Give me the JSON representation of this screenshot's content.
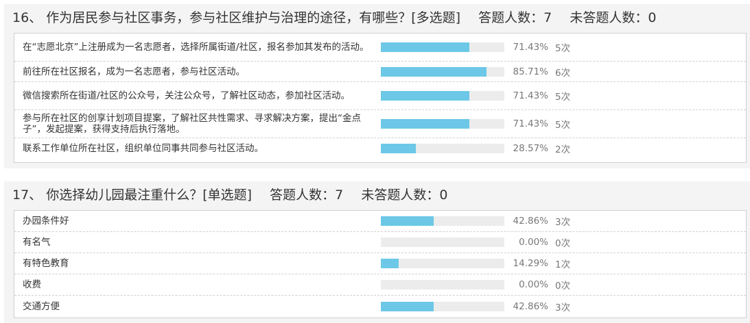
{
  "questions": [
    {
      "number": "16、",
      "text": "作为居民参与社区事务，参与社区维护与治理的途径，有哪些？[多选题]",
      "answered_label": "答题人数：7",
      "unanswered_label": "未答题人数：0",
      "options": [
        {
          "label": "在“志愿北京”上注册成为一名志愿者，选择所属街道/社区，报名参加其发布的活动。",
          "percent_text": "71.43%",
          "count_text": "5次",
          "fraction": 0.7143
        },
        {
          "label": "前往所在社区报名，成为一名志愿者，参与社区活动。",
          "percent_text": "85.71%",
          "count_text": "6次",
          "fraction": 0.8571
        },
        {
          "label": "微信搜索所在街道/社区的公众号，关注公众号，了解社区动态，参加社区活动。",
          "percent_text": "71.43%",
          "count_text": "5次",
          "fraction": 0.7143
        },
        {
          "label": "参与所在社区的创享计划项目提案，了解社区共性需求、寻求解决方案，提出“金点子”，发起提案，获得支持后执行落地。",
          "percent_text": "71.43%",
          "count_text": "5次",
          "fraction": 0.7143
        },
        {
          "label": "联系工作单位所在社区，组织单位同事共同参与社区活动。",
          "percent_text": "28.57%",
          "count_text": "2次",
          "fraction": 0.2857
        }
      ]
    },
    {
      "number": "17、",
      "text": "你选择幼儿园最注重什么？[单选题]",
      "answered_label": "答题人数：7",
      "unanswered_label": "未答题人数：0",
      "options": [
        {
          "label": "办园条件好",
          "percent_text": "42.86%",
          "count_text": "3次",
          "fraction": 0.4286
        },
        {
          "label": "有名气",
          "percent_text": "0.00%",
          "count_text": "0次",
          "fraction": 0.0
        },
        {
          "label": "有特色教育",
          "percent_text": "14.29%",
          "count_text": "1次",
          "fraction": 0.1429
        },
        {
          "label": "收费",
          "percent_text": "0.00%",
          "count_text": "0次",
          "fraction": 0.0
        },
        {
          "label": "交通方便",
          "percent_text": "42.86%",
          "count_text": "3次",
          "fraction": 0.4286
        }
      ]
    }
  ],
  "colors": {
    "bar_fill": "#6cc8e6",
    "bar_track": "#ececec",
    "panel_bg": "#f4f4f4"
  }
}
